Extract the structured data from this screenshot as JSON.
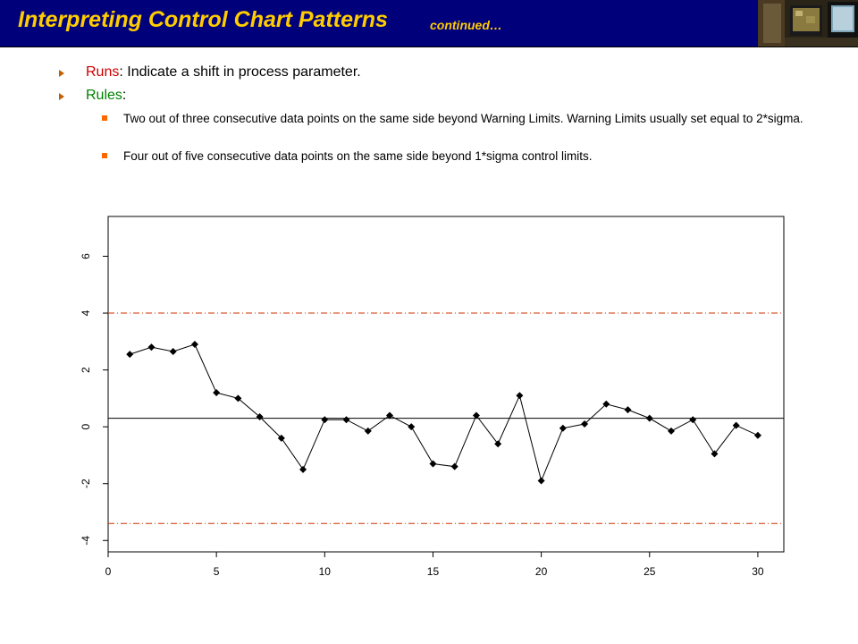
{
  "header": {
    "title": "Interpreting Control Chart Patterns",
    "continued": "continued…"
  },
  "bullets": [
    {
      "label": "Runs",
      "text": ": Indicate a shift in process parameter."
    },
    {
      "label": "Rules",
      "text": ":"
    }
  ],
  "subbullets": [
    "Two out of three consecutive data points on the same side beyond Warning Limits. Warning Limits usually set equal to 2*sigma.",
    "Four out of five consecutive data points on the same side beyond 1*sigma control limits."
  ],
  "colors": {
    "title_bar": "#00007a",
    "title_text": "#ffcc00",
    "runs_label": "#cc0000",
    "rules_label": "#008000",
    "arrow": "#c06000",
    "square_bullet": "#ff6600",
    "limit_line": "#cc3300"
  },
  "chart_data": {
    "type": "line",
    "title": "",
    "xlabel": "",
    "ylabel": "",
    "xlim": [
      0,
      31.2
    ],
    "ylim": [
      -4.4,
      7.4
    ],
    "x_ticks": [
      0,
      5,
      10,
      15,
      20,
      25,
      30
    ],
    "y_ticks": [
      -4,
      -2,
      0,
      2,
      4,
      6
    ],
    "center_line": 0.3,
    "upper_limit": 4.0,
    "lower_limit": -3.4,
    "x": [
      1,
      2,
      3,
      4,
      5,
      6,
      7,
      8,
      9,
      10,
      11,
      12,
      13,
      14,
      15,
      16,
      17,
      18,
      19,
      20,
      21,
      22,
      23,
      24,
      25,
      26,
      27,
      28,
      29,
      30
    ],
    "y": [
      2.55,
      2.8,
      2.65,
      2.9,
      1.2,
      1.0,
      0.35,
      -0.4,
      -1.5,
      0.25,
      0.25,
      -0.15,
      0.4,
      0.0,
      -1.3,
      -1.4,
      0.4,
      -0.6,
      1.1,
      -1.9,
      -0.05,
      0.1,
      0.8,
      0.6,
      0.3,
      -0.15,
      0.25,
      -0.95,
      0.05,
      -0.3
    ],
    "grid": false
  }
}
